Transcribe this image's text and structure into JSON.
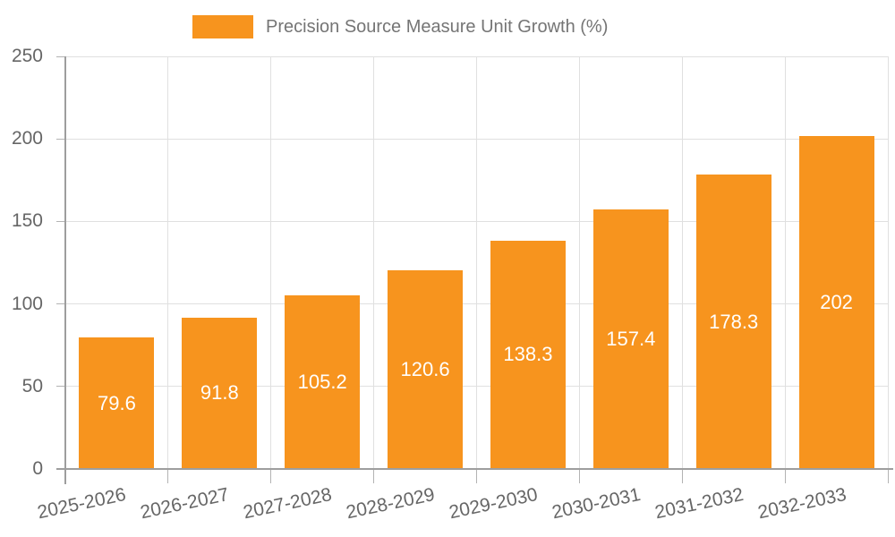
{
  "chart_data": {
    "type": "bar",
    "title": "Precision Source Measure Unit Growth (%)",
    "categories": [
      "2025-2026",
      "2026-2027",
      "2027-2028",
      "2028-2029",
      "2029-2030",
      "2030-2031",
      "2031-2032",
      "2032-2033"
    ],
    "series": [
      {
        "name": "Precision Source Measure Unit Growth (%)",
        "values": [
          79.6,
          91.8,
          105.2,
          120.6,
          138.3,
          157.4,
          178.3,
          202
        ]
      }
    ],
    "value_labels": [
      "79.6",
      "91.8",
      "105.2",
      "120.6",
      "138.3",
      "157.4",
      "178.3",
      "202"
    ],
    "xlabel": "",
    "ylabel": "",
    "ylim": [
      0,
      250
    ],
    "yticks": [
      0,
      50,
      100,
      150,
      200,
      250
    ],
    "grid": true,
    "legend_position": "top",
    "colors": {
      "bar": "#F7941E",
      "value_label": "#FFFFFF",
      "grid": "#E0E0E0",
      "axis": "#9E9E9E",
      "tick_mark": "#B3B3B3",
      "tick_text": "#666666",
      "legend_text": "#757575"
    }
  }
}
